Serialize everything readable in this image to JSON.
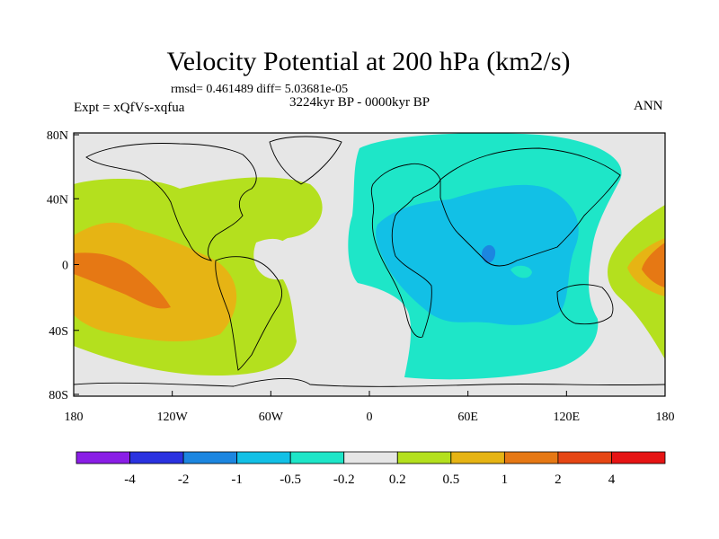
{
  "title": "Velocity Potential at 200 hPa (km2/s)",
  "stats": "rmsd= 0.461489 diff= 5.03681e-05",
  "period": "3224kyr BP - 0000kyr BP",
  "experiment": "Expt = xQfVs-xqfua",
  "season": "ANN",
  "lat_ticks": [
    "80N",
    "40N",
    "0",
    "40S",
    "80S"
  ],
  "lon_ticks": [
    "180",
    "120W",
    "60W",
    "0",
    "60E",
    "120E",
    "180"
  ],
  "colorbar": {
    "labels": [
      "-4",
      "-2",
      "-1",
      "-0.5",
      "-0.2",
      "0.2",
      "0.5",
      "1",
      "2",
      "4"
    ],
    "colors": [
      "#8a1ee6",
      "#2a32e0",
      "#1c86e0",
      "#12c0e6",
      "#1ee6c8",
      "#e6e6e6",
      "#b4e01e",
      "#e6b414",
      "#e67814",
      "#e64614",
      "#e61414"
    ]
  },
  "regions": {
    "background": "#e6e6e6",
    "negative_weak": "#1ee6c8",
    "negative_mid": "#12c0e6",
    "negative_strong": "#1c86e0",
    "positive_weak": "#b4e01e",
    "positive_mid": "#e6b414",
    "positive_strong": "#e67814"
  }
}
